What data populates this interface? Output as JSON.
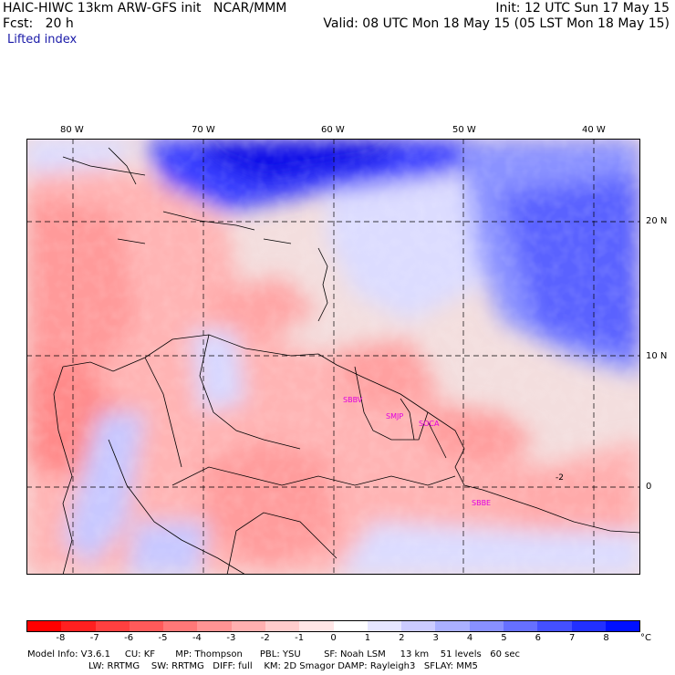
{
  "header": {
    "model_line": "HAIC-HIWC 13km ARW-GFS init   NCAR/MMM",
    "init_line": "Init: 12 UTC Sun 17 May 15",
    "fcst_line": "Fcst:   20 h",
    "valid_line": "Valid: 08 UTC Mon 18 May 15 (05 LST Mon 18 May 15)",
    "field_name": "Lifted index"
  },
  "map": {
    "lon_labels": [
      "80 W",
      "70 W",
      "60 W",
      "50 W",
      "40 W"
    ],
    "lat_labels": [
      "20 N",
      "10 N",
      "0"
    ],
    "stations": [
      "SMJP",
      "SOCA",
      "SBBE"
    ],
    "contour_label": "-2"
  },
  "colorbar": {
    "unit": "°C",
    "ticks": [
      "-8",
      "-7",
      "-6",
      "-5",
      "-4",
      "-3",
      "-2",
      "-1",
      "0",
      "1",
      "2",
      "3",
      "4",
      "5",
      "6",
      "7",
      "8"
    ],
    "colors": [
      "#ff0000",
      "#ff2020",
      "#ff4040",
      "#ff5a5a",
      "#ff7878",
      "#ff9494",
      "#ffb0b0",
      "#ffcccc",
      "#ffe6e6",
      "#ffffff",
      "#e6e6ff",
      "#ccccff",
      "#aab0ff",
      "#8890ff",
      "#6670ff",
      "#4450ff",
      "#2230ff",
      "#0010ff"
    ]
  },
  "footer": {
    "line1": "Model Info: V3.6.1     CU: KF       MP: Thompson      PBL: YSU        SF: Noah LSM     13 km    51 levels   60 sec",
    "line2": "LW: RRTMG    SW: RRTMG   DIFF: full    KM: 2D Smagor DAMP: Rayleigh3   SFLAY: MM5"
  }
}
